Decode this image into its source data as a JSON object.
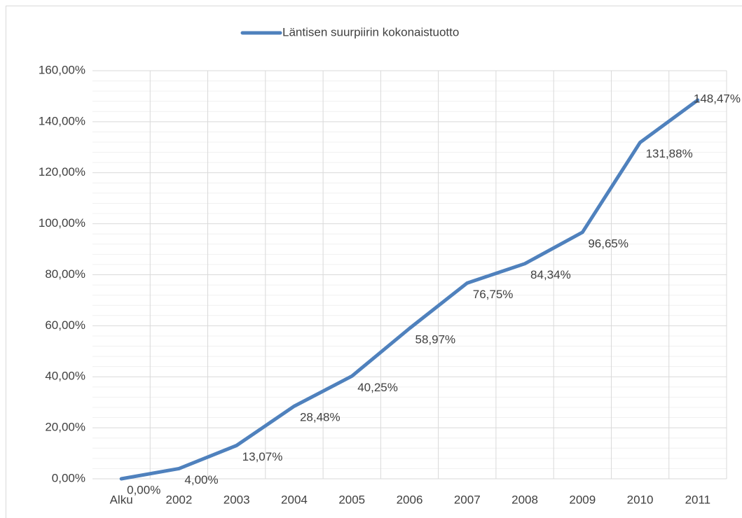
{
  "chart_data": {
    "type": "line",
    "categories": [
      "Alku",
      "2002",
      "2003",
      "2004",
      "2005",
      "2006",
      "2007",
      "2008",
      "2009",
      "2010",
      "2011"
    ],
    "series": [
      {
        "name": "Läntisen suurpiirin kokonaistuotto",
        "color": "#4f81bd",
        "values": [
          0,
          4,
          13.07,
          28.48,
          40.25,
          58.97,
          76.75,
          84.34,
          96.65,
          131.88,
          148.47
        ],
        "value_labels": [
          "0,00%",
          "4,00%",
          "13,07%",
          "28,48%",
          "40,25%",
          "58,97%",
          "76,75%",
          "84,34%",
          "96,65%",
          "131,88%",
          "148,47%"
        ]
      }
    ],
    "ylim": [
      0,
      160
    ],
    "yticks": [
      {
        "value": 0,
        "label": "0,00%"
      },
      {
        "value": 20,
        "label": "20,00%"
      },
      {
        "value": 40,
        "label": "40,00%"
      },
      {
        "value": 60,
        "label": "60,00%"
      },
      {
        "value": 80,
        "label": "80,00%"
      },
      {
        "value": 100,
        "label": "100,00%"
      },
      {
        "value": 120,
        "label": "120,00%"
      },
      {
        "value": 140,
        "label": "140,00%"
      },
      {
        "value": 160,
        "label": "160,00%"
      }
    ],
    "grid": true,
    "minor_grid_divisions": 5,
    "legend": "top"
  }
}
